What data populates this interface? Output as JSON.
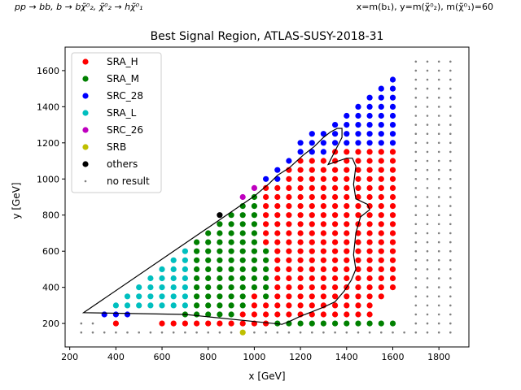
{
  "header": {
    "process": "pp → bb, b → bχ̃⁰₂, χ̃⁰₂ → hχ̃⁰₁",
    "mass_note": "x=m(b₁), y=m(χ̃⁰₂), m(χ̃⁰₁)=60"
  },
  "chart_data": {
    "type": "scatter",
    "title": "Best Signal Region, ATLAS-SUSY-2018-31",
    "xlabel": "x [GeV]",
    "ylabel": "y [GeV]",
    "xlim": [
      180,
      1930
    ],
    "ylim": [
      70,
      1730
    ],
    "xticks": [
      200,
      400,
      600,
      800,
      1000,
      1200,
      1400,
      1600,
      1800
    ],
    "yticks": [
      200,
      400,
      600,
      800,
      1000,
      1200,
      1400,
      1600
    ],
    "legend_position": "top-left",
    "series_colors": {
      "SRA_H": "#ff0000",
      "SRA_M": "#008000",
      "SRC_28": "#0000ff",
      "SRA_L": "#00bfbf",
      "SRC_26": "#bf00bf",
      "SRB": "#bfbf00",
      "others": "#000000",
      "no result": "#808080"
    },
    "legend": [
      "SRA_H",
      "SRA_M",
      "SRC_28",
      "SRA_L",
      "SRC_26",
      "SRB",
      "others",
      "no result"
    ],
    "grid_x": [
      350,
      400,
      450,
      500,
      550,
      600,
      650,
      700,
      750,
      800,
      850,
      900,
      950,
      1000,
      1050,
      1100,
      1150,
      1200,
      1250,
      1300,
      1350,
      1400,
      1450,
      1500,
      1550,
      1600
    ],
    "grid_y": [
      200,
      250,
      300,
      350,
      400,
      450,
      500,
      550,
      600,
      650,
      700,
      750,
      800,
      850,
      900,
      950,
      1000,
      1050,
      1100,
      1150,
      1200,
      1250,
      1300,
      1350,
      1400,
      1450,
      1500,
      1550,
      1600
    ],
    "diag_offset": 100,
    "green_limit": [
      [
        700,
        650
      ],
      [
        750,
        700
      ],
      [
        800,
        750
      ],
      [
        850,
        800
      ],
      [
        900,
        850
      ],
      [
        950,
        900
      ],
      [
        1000,
        900
      ],
      [
        1050,
        600
      ],
      [
        1100,
        200
      ],
      [
        1150,
        200
      ],
      [
        1200,
        200
      ],
      [
        1250,
        200
      ],
      [
        1300,
        200
      ],
      [
        1350,
        200
      ],
      [
        1400,
        200
      ],
      [
        1450,
        200
      ],
      [
        1500,
        200
      ],
      [
        1550,
        200
      ],
      [
        1600,
        200
      ]
    ],
    "red_start": [
      [
        1050,
        350
      ],
      [
        1100,
        250
      ],
      [
        1150,
        250
      ],
      [
        1200,
        250
      ],
      [
        1250,
        250
      ],
      [
        1300,
        250
      ],
      [
        1350,
        250
      ],
      [
        1400,
        250
      ],
      [
        1450,
        250
      ],
      [
        1500,
        450
      ],
      [
        1550,
        450
      ],
      [
        1600,
        450
      ]
    ],
    "cyan_limit": [
      [
        350,
        300
      ],
      [
        400,
        350
      ],
      [
        450,
        400
      ],
      [
        500,
        450
      ],
      [
        550,
        500
      ],
      [
        600,
        550
      ],
      [
        650,
        600
      ],
      [
        700,
        650
      ]
    ],
    "blue_points": [
      [
        350,
        250
      ],
      [
        400,
        250
      ],
      [
        450,
        250
      ],
      [
        1050,
        1000
      ],
      [
        1100,
        1000
      ],
      [
        1100,
        1050
      ],
      [
        1150,
        1100
      ],
      [
        1200,
        1150
      ],
      [
        1200,
        1200
      ],
      [
        1250,
        1150
      ],
      [
        1250,
        1200
      ],
      [
        1250,
        1250
      ],
      [
        1300,
        1150
      ],
      [
        1300,
        1200
      ],
      [
        1300,
        1250
      ],
      [
        1350,
        1200
      ],
      [
        1350,
        1250
      ],
      [
        1350,
        1300
      ],
      [
        1400,
        1200
      ],
      [
        1400,
        1250
      ],
      [
        1400,
        1300
      ],
      [
        1400,
        1350
      ],
      [
        1450,
        1200
      ],
      [
        1450,
        1250
      ],
      [
        1450,
        1300
      ],
      [
        1450,
        1350
      ],
      [
        1450,
        1400
      ],
      [
        1500,
        1200
      ],
      [
        1500,
        1250
      ],
      [
        1500,
        1300
      ],
      [
        1500,
        1350
      ],
      [
        1500,
        1400
      ],
      [
        1500,
        1450
      ],
      [
        1550,
        1200
      ],
      [
        1550,
        1250
      ],
      [
        1550,
        1300
      ],
      [
        1550,
        1350
      ],
      [
        1550,
        1400
      ],
      [
        1550,
        1450
      ],
      [
        1550,
        1500
      ],
      [
        1600,
        1200
      ],
      [
        1600,
        1250
      ],
      [
        1600,
        1300
      ],
      [
        1600,
        1350
      ],
      [
        1600,
        1400
      ],
      [
        1600,
        1450
      ],
      [
        1600,
        1500
      ],
      [
        1600,
        1550
      ]
    ],
    "red_extra": [
      [
        400,
        200
      ],
      [
        600,
        200
      ],
      [
        650,
        200
      ],
      [
        700,
        200
      ],
      [
        750,
        200
      ],
      [
        800,
        200
      ],
      [
        850,
        200
      ],
      [
        900,
        200
      ],
      [
        950,
        200
      ],
      [
        1000,
        200
      ],
      [
        1050,
        200
      ],
      [
        950,
        250
      ],
      [
        1000,
        250
      ],
      [
        1050,
        250
      ],
      [
        1000,
        300
      ],
      [
        1050,
        300
      ],
      [
        1000,
        350
      ],
      [
        1500,
        400
      ],
      [
        1550,
        400
      ],
      [
        1600,
        400
      ],
      [
        1500,
        350
      ],
      [
        1550,
        350
      ],
      [
        1500,
        300
      ],
      [
        1500,
        250
      ]
    ],
    "magenta_points": [
      [
        950,
        900
      ],
      [
        1000,
        950
      ]
    ],
    "black_points": [
      [
        850,
        800
      ]
    ],
    "yellow_points": [
      [
        950,
        150
      ]
    ],
    "gray_points": {
      "right_x": [
        1650,
        1700,
        1750,
        1800,
        1850
      ],
      "right_y": [
        150,
        200,
        250,
        300,
        350,
        400,
        450,
        500,
        550,
        600,
        650,
        700,
        750,
        800,
        850,
        900,
        950,
        1000,
        1050,
        1100,
        1150,
        1200,
        1250,
        1300,
        1350,
        1400,
        1450,
        1500,
        1550,
        1600,
        1650
      ],
      "bottom_x": [
        250,
        300,
        350,
        400,
        450,
        500,
        550,
        600,
        650,
        700,
        750,
        800,
        850,
        900,
        1000,
        1050,
        1100,
        1150,
        1200,
        1250,
        1300,
        1350,
        1400,
        1450,
        1500,
        1550,
        1600
      ],
      "bottom_y": [
        150,
        200
      ]
    },
    "exclusion_contour": [
      [
        260,
        260
      ],
      [
        1000,
        905
      ],
      [
        1065,
        975
      ],
      [
        1100,
        1020
      ],
      [
        1150,
        1060
      ],
      [
        1210,
        1130
      ],
      [
        1260,
        1180
      ],
      [
        1300,
        1230
      ],
      [
        1330,
        1260
      ],
      [
        1360,
        1280
      ],
      [
        1380,
        1280
      ],
      [
        1380,
        1230
      ],
      [
        1320,
        1080
      ],
      [
        1400,
        1115
      ],
      [
        1425,
        1115
      ],
      [
        1440,
        1070
      ],
      [
        1430,
        970
      ],
      [
        1440,
        890
      ],
      [
        1490,
        860
      ],
      [
        1500,
        830
      ],
      [
        1460,
        790
      ],
      [
        1440,
        700
      ],
      [
        1430,
        580
      ],
      [
        1440,
        500
      ],
      [
        1420,
        440
      ],
      [
        1390,
        380
      ],
      [
        1350,
        320
      ],
      [
        1300,
        290
      ],
      [
        1250,
        265
      ],
      [
        1200,
        240
      ],
      [
        1150,
        210
      ],
      [
        1120,
        195
      ],
      [
        700,
        250
      ],
      [
        260,
        260
      ]
    ]
  }
}
